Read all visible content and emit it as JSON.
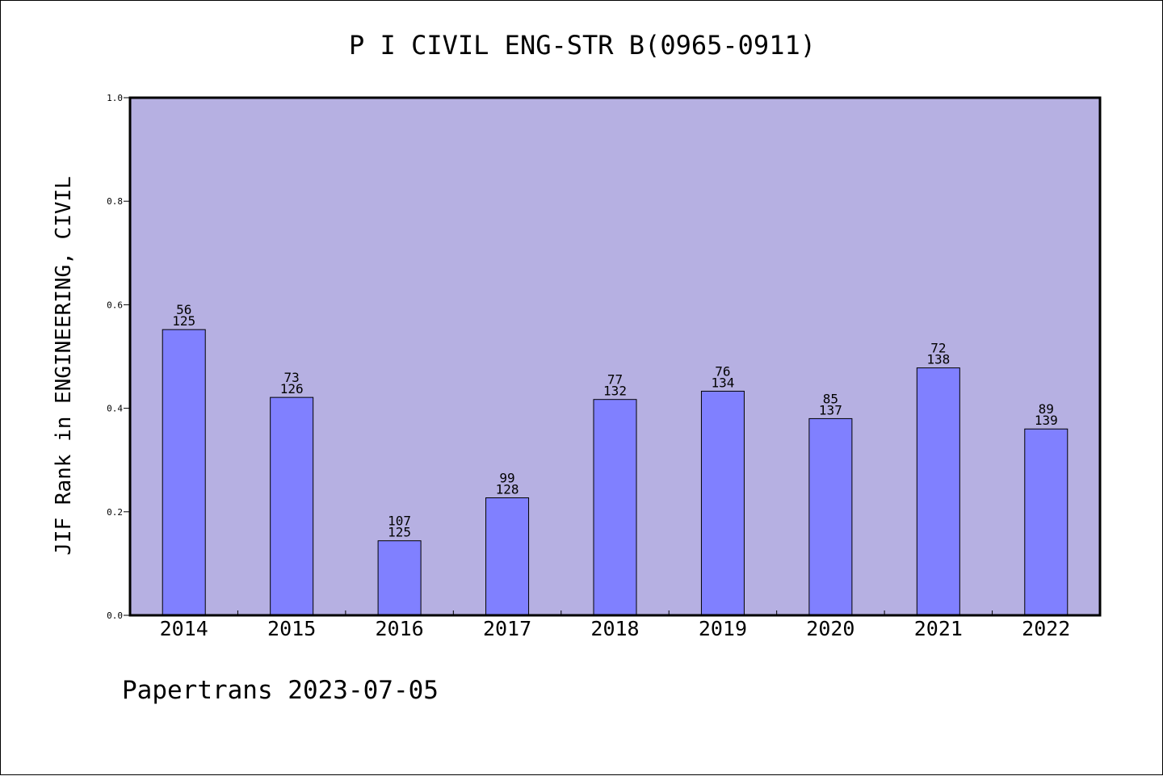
{
  "chart_data": {
    "type": "bar",
    "title": "P I CIVIL ENG-STR B(0965-0911)",
    "xlabel": "",
    "ylabel": "JIF Rank in ENGINEERING, CIVIL",
    "footer": "Papertrans 2023-07-05",
    "categories": [
      "2014",
      "2015",
      "2016",
      "2017",
      "2018",
      "2019",
      "2020",
      "2021",
      "2022"
    ],
    "values": [
      0.552,
      0.421,
      0.144,
      0.227,
      0.417,
      0.433,
      0.38,
      0.478,
      0.36
    ],
    "ranks": [
      "56",
      "73",
      "107",
      "99",
      "77",
      "76",
      "85",
      "72",
      "89"
    ],
    "totals": [
      "125",
      "126",
      "125",
      "128",
      "132",
      "134",
      "137",
      "138",
      "139"
    ],
    "ylim": [
      0.0,
      1.0
    ],
    "yticks": [
      "0.0",
      "0.2",
      "0.4",
      "0.6",
      "0.8",
      "1.0"
    ],
    "grid": false,
    "colors": {
      "plot_background": "#b6b0e2",
      "bar_fill": "#8080ff",
      "bar_stroke": "#000000",
      "axis": "#000000",
      "text": "#000000"
    }
  }
}
